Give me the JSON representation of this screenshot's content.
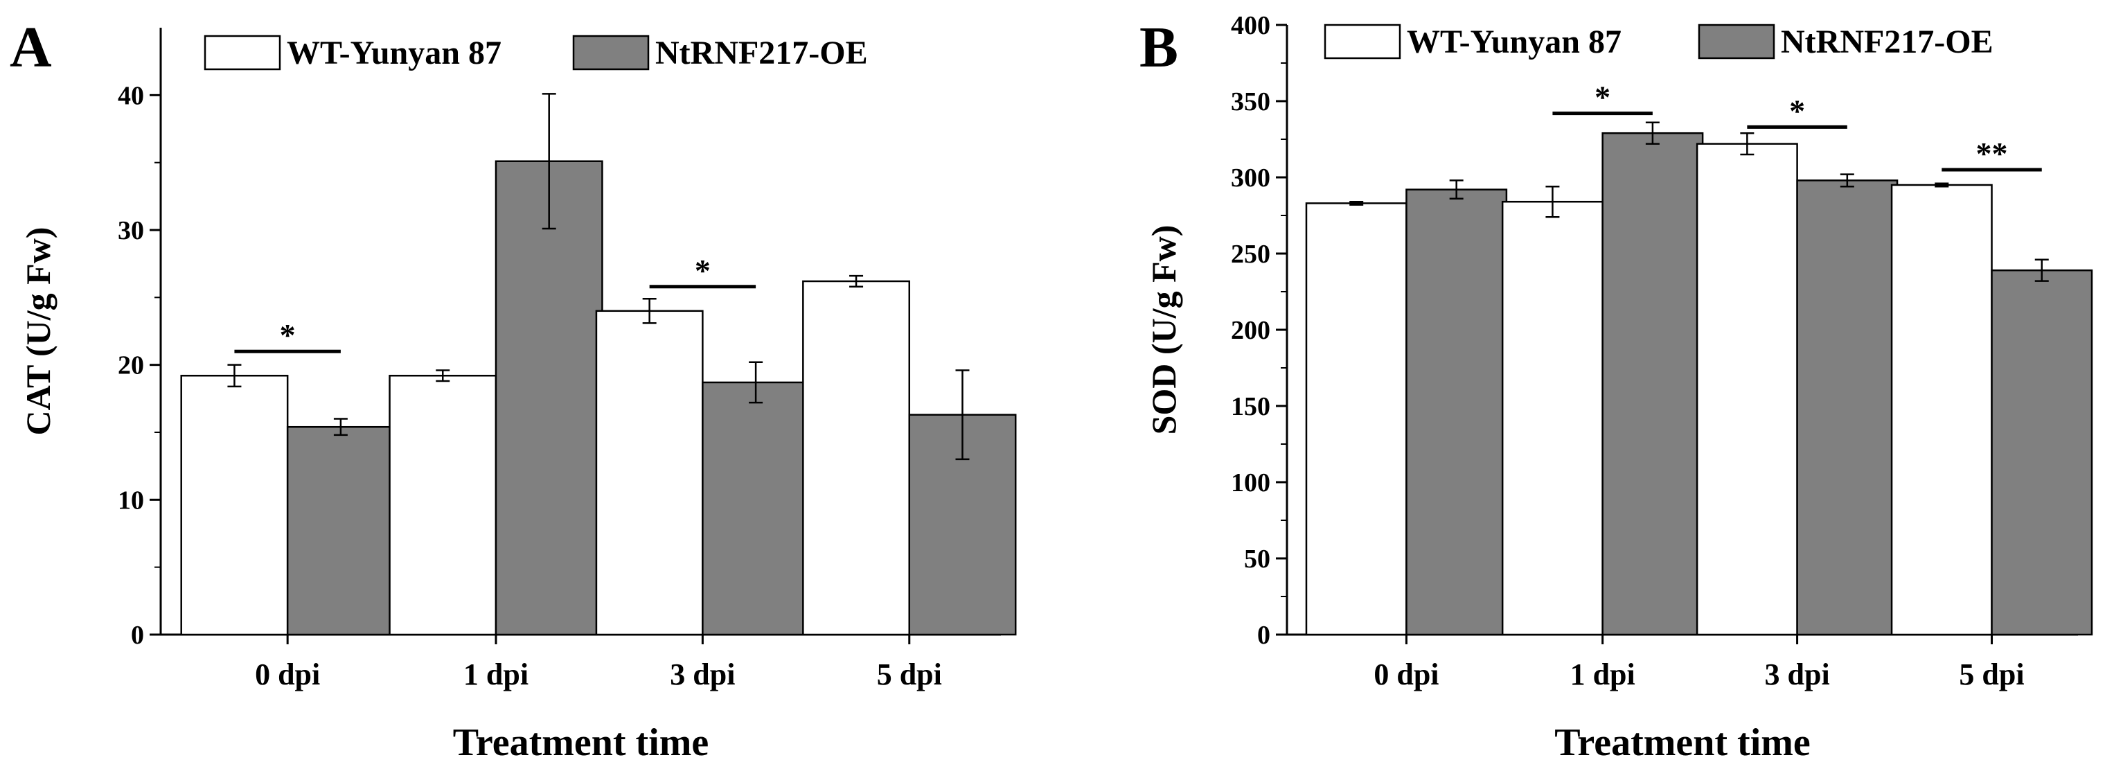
{
  "chart_data": [
    {
      "panel": "A",
      "type": "bar",
      "categories": [
        "0 dpi",
        "1 dpi",
        "3 dpi",
        "5 dpi"
      ],
      "series": [
        {
          "name": "WT-Yunyan 87",
          "color": "#ffffff",
          "values": [
            19.2,
            19.2,
            24.0,
            26.2
          ],
          "errors": [
            0.8,
            0.4,
            0.9,
            0.4
          ]
        },
        {
          "name": "NtRNF217-OE",
          "color": "#808080",
          "values": [
            15.4,
            35.1,
            18.7,
            16.3
          ],
          "errors": [
            0.6,
            5.0,
            1.5,
            3.3
          ]
        }
      ],
      "significance": [
        {
          "category": "0 dpi",
          "label": "*",
          "y": 21
        },
        {
          "category": "3 dpi",
          "label": "*",
          "y": 25.8
        }
      ],
      "title": "",
      "xlabel": "Treatment time",
      "ylabel": "CAT (U/g Fw)",
      "ylim": [
        0,
        45
      ],
      "yticks": [
        0,
        10,
        20,
        30,
        40
      ],
      "ytick_labels": [
        "0",
        "10",
        "20",
        "30",
        "40"
      ],
      "legend_position": "top"
    },
    {
      "panel": "B",
      "type": "bar",
      "categories": [
        "0 dpi",
        "1 dpi",
        "3 dpi",
        "5 dpi"
      ],
      "series": [
        {
          "name": "WT-Yunyan 87",
          "color": "#ffffff",
          "values": [
            283,
            284,
            322,
            295
          ],
          "errors": [
            1,
            10,
            7,
            1
          ]
        },
        {
          "name": "NtRNF217-OE",
          "color": "#808080",
          "values": [
            292,
            329,
            298,
            239
          ],
          "errors": [
            6,
            7,
            4,
            7
          ]
        }
      ],
      "significance": [
        {
          "category": "1 dpi",
          "label": "*",
          "y": 342
        },
        {
          "category": "3 dpi",
          "label": "*",
          "y": 333
        },
        {
          "category": "5 dpi",
          "label": "**",
          "y": 305
        }
      ],
      "title": "",
      "xlabel": "Treatment time",
      "ylabel": "SOD (U/g Fw)",
      "ylim": [
        0,
        400
      ],
      "yticks": [
        0,
        50,
        100,
        150,
        200,
        250,
        300,
        350,
        400
      ],
      "ytick_labels": [
        "0",
        "50",
        "100",
        "150",
        "200",
        "250",
        "300",
        "350",
        "400"
      ],
      "legend_position": "top"
    }
  ]
}
